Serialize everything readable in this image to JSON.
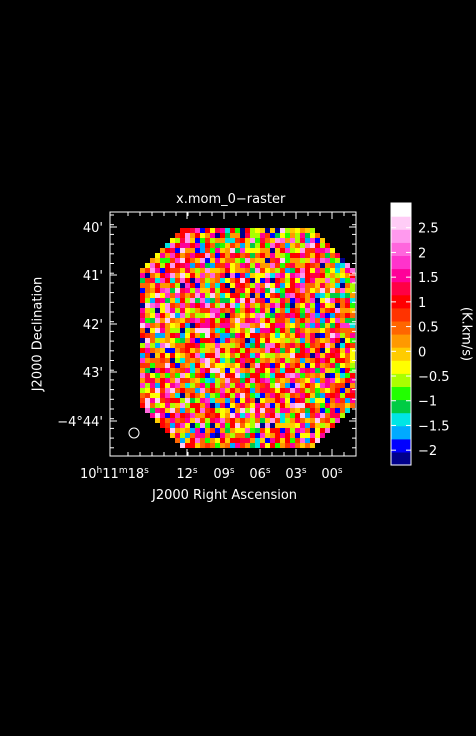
{
  "chart_data": {
    "type": "heatmap",
    "title": "x.mom_0−raster",
    "xlabel": "J2000 Right Ascension",
    "ylabel": "J2000 Declination",
    "colorbar_label": "(K.km/s)",
    "x_ticks": [
      {
        "hh": "10",
        "h": "h",
        "mm": "11",
        "m": "m",
        "ss": "18",
        "s": "s"
      },
      {
        "ss": "12",
        "s": "s"
      },
      {
        "ss": "09",
        "s": "s"
      },
      {
        "ss": "06",
        "s": "s"
      },
      {
        "ss": "03",
        "s": "s"
      },
      {
        "ss": "00",
        "s": "s"
      }
    ],
    "y_ticks": [
      "40'",
      "41'",
      "42'",
      "43'",
      "−4°44'"
    ],
    "colorbar_ticks": [
      "2.5",
      "2",
      "1.5",
      "1",
      "0.5",
      "0",
      "−0.5",
      "−1",
      "−1.5",
      "−2"
    ],
    "colorbar_range": [
      -2.3,
      3.0
    ],
    "colormap": [
      "#00008b",
      "#0000ff",
      "#00aaff",
      "#00e5e5",
      "#00cc44",
      "#22ff00",
      "#aaff00",
      "#ffff00",
      "#ffcc00",
      "#ff9900",
      "#ff6600",
      "#ff3300",
      "#ff0000",
      "#ff0044",
      "#ff0099",
      "#ff33cc",
      "#ff66dd",
      "#ff99ee",
      "#ffccf6",
      "#ffffff"
    ],
    "beam": "circle, lower-left",
    "background": "#000000"
  }
}
